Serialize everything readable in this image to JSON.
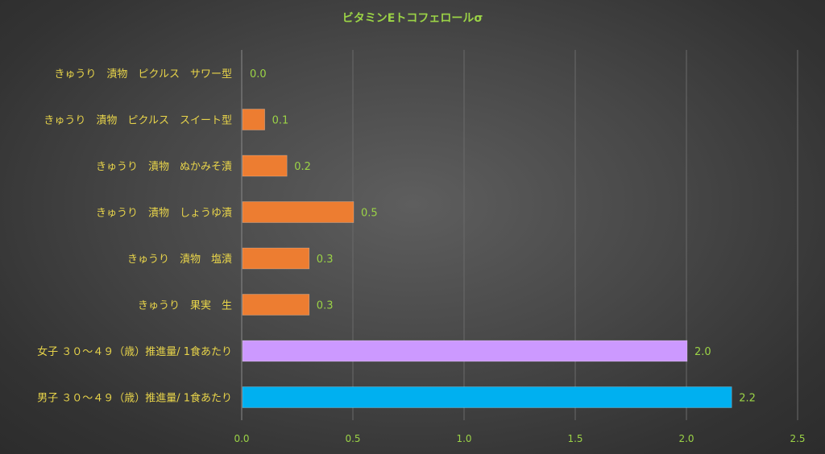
{
  "chart_data": {
    "type": "bar",
    "orientation": "horizontal",
    "title": "ビタミンEトコフェロールσ",
    "categories": [
      "きゅうり　漬物　ピクルス　サワー型",
      "きゅうり　漬物　ピクルス　スイート型",
      "きゅうり　漬物　ぬかみそ漬",
      "きゅうり　漬物　しょうゆ漬",
      "きゅうり　漬物　塩漬",
      "きゅうり　果実　生",
      "女子 ３０～４９（歳）推進量/ 1食あたり",
      "男子 ３０～４９（歳）推進量/ 1食あたり"
    ],
    "values": [
      0.0,
      0.1,
      0.2,
      0.5,
      0.3,
      0.3,
      2.0,
      2.2
    ],
    "value_labels": [
      "0.0",
      "0.1",
      "0.2",
      "0.5",
      "0.3",
      "0.3",
      "2.0",
      "2.2"
    ],
    "bar_colors": [
      "#ed7d31",
      "#ed7d31",
      "#ed7d31",
      "#ed7d31",
      "#ed7d31",
      "#ed7d31",
      "#cc99ff",
      "#00b0f0"
    ],
    "xlim": [
      0,
      2.5
    ],
    "xticks": [
      "0.0",
      "0.5",
      "1.0",
      "1.5",
      "2.0",
      "2.5"
    ],
    "grid": true,
    "colors": {
      "title": "#9bd346",
      "category_label": "#e8d44a",
      "value_label": "#9bd346",
      "tick_label": "#9bd346",
      "grid": "#6a6a6a"
    }
  }
}
